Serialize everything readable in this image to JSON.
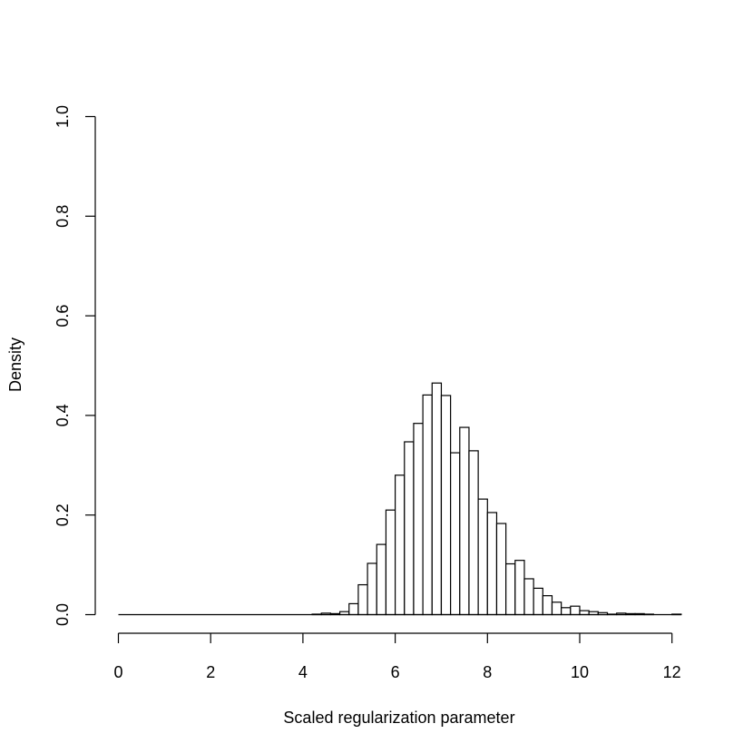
{
  "chart_data": {
    "type": "bar",
    "xlabel": "Scaled regularization parameter",
    "ylabel": "Density",
    "xlim": [
      0,
      12.2
    ],
    "ylim": [
      0,
      1.0
    ],
    "x_ticks": [
      "0",
      "2",
      "4",
      "6",
      "8",
      "10",
      "12"
    ],
    "y_ticks": [
      "0.0",
      "0.2",
      "0.4",
      "0.6",
      "0.8",
      "1.0"
    ],
    "bin_width": 0.2,
    "bin_start": 0,
    "densities": [
      0,
      0,
      0,
      0,
      0,
      0,
      0,
      0,
      0,
      0,
      0,
      0,
      0,
      0,
      0,
      0,
      0,
      0,
      0,
      0,
      0,
      0.001,
      0.003,
      0.002,
      0.006,
      0.022,
      0.06,
      0.103,
      0.141,
      0.21,
      0.28,
      0.347,
      0.384,
      0.441,
      0.465,
      0.44,
      0.325,
      0.376,
      0.329,
      0.232,
      0.205,
      0.183,
      0.102,
      0.109,
      0.072,
      0.053,
      0.038,
      0.025,
      0.014,
      0.017,
      0.008,
      0.006,
      0.004,
      0.001,
      0.003,
      0.002,
      0.002,
      0.001,
      0,
      0,
      0.001
    ],
    "grid": false,
    "legend": "none",
    "bar_fill": "#ffffff",
    "bar_stroke": "#000000"
  }
}
